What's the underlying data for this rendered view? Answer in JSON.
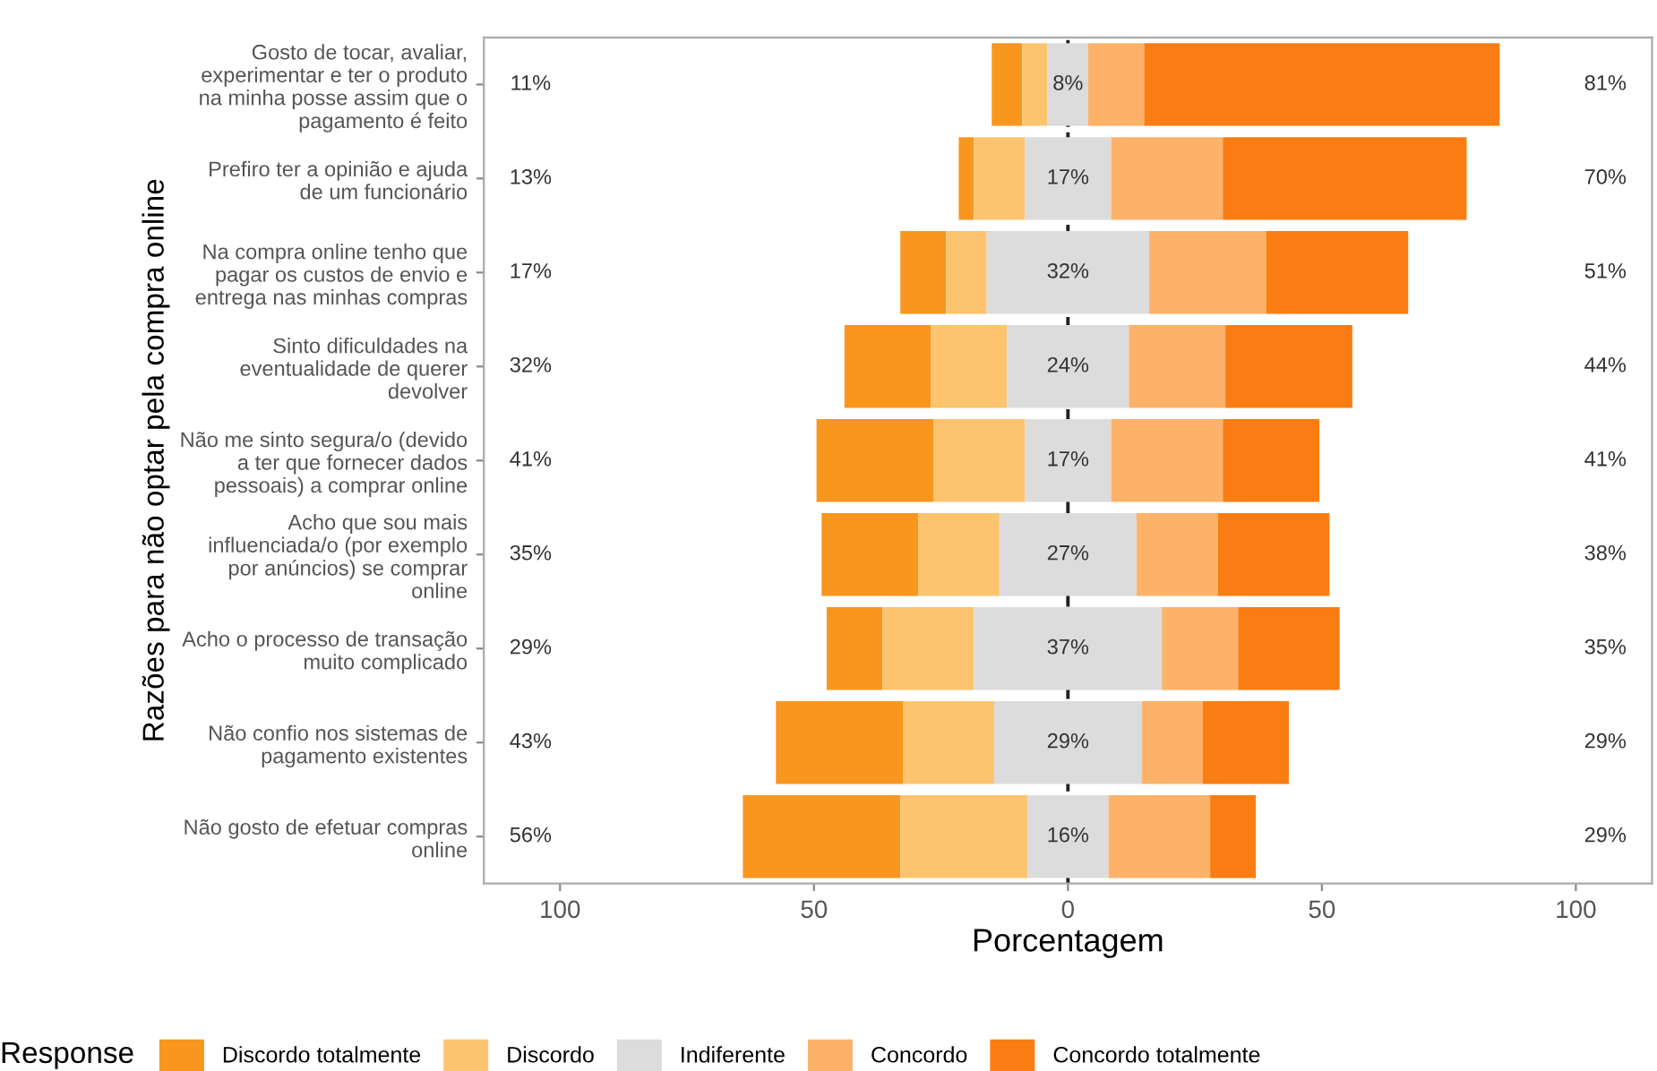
{
  "chart_data": {
    "type": "bar",
    "orientation": "horizontal",
    "xlabel": "Porcentagem",
    "ylabel": "Razões para não optar pela compra online",
    "legend_title": "Response",
    "legend": "bottom",
    "grid": false,
    "categories": [
      "Gosto de tocar, avaliar,\nexperimentar e ter o produto\nna minha posse assim que o\npagamento é feito",
      "Prefiro ter a opinião e ajuda\nde um funcionário",
      "Na compra online tenho que\npagar os custos de envio e\nentrega nas minhas compras",
      "Sinto dificuldades na\neventualidade de querer\ndevolver",
      "Não me sinto segura/o (devido\na ter que fornecer dados\npessoais) a comprar online",
      "Acho que sou mais\ninfluenciada/o (por exemplo\npor anúncios) se comprar\nonline",
      "Acho o processo de transação\nmuito complicado",
      "Não confio nos sistemas de\npagamento existentes",
      "Não gosto de efetuar compras\nonline"
    ],
    "xlim": [
      -115,
      115
    ],
    "xticks": [
      {
        "value": -100,
        "label": "100"
      },
      {
        "value": -50,
        "label": "50"
      },
      0,
      50,
      100
    ],
    "series": [
      {
        "name": "Discordo totalmente",
        "color": "#f8961e",
        "values": [
          6,
          3,
          9,
          17,
          23,
          19,
          11,
          25,
          31
        ],
        "base": [
          -15,
          -21.5,
          -33,
          -44,
          -49.5,
          -48.5,
          -47.5,
          -57.5,
          -64
        ]
      },
      {
        "name": "Discordo",
        "color": "#fcc46e",
        "values": [
          5,
          10,
          8,
          15,
          18,
          16,
          18,
          18,
          25
        ],
        "base": [
          -9,
          -18.5,
          -24,
          -27,
          -26.5,
          -29.5,
          -36.5,
          -32.5,
          -33
        ]
      },
      {
        "name": "Indiferente",
        "color": "#dcdcdc",
        "values": [
          8,
          17,
          32,
          24,
          17,
          27,
          37,
          29,
          16
        ],
        "base": [
          -4,
          -8.5,
          -16,
          -12,
          -8.5,
          -13.5,
          -18.5,
          -14.5,
          -8
        ],
        "value_labels": [
          "8%",
          "17%",
          "32%",
          "24%",
          "17%",
          "27%",
          "37%",
          "29%",
          "16%"
        ]
      },
      {
        "name": "Concordo",
        "color": "#fdb26a",
        "values": [
          11,
          22,
          23,
          19,
          22,
          16,
          15,
          12,
          20
        ],
        "base": [
          4,
          8.5,
          16,
          12,
          8.5,
          13.5,
          18.5,
          14.5,
          8
        ]
      },
      {
        "name": "Concordo totalmente",
        "color": "#f97d12",
        "values": [
          70,
          48,
          28,
          25,
          19,
          22,
          20,
          17,
          9
        ],
        "base": [
          15,
          30.5,
          39,
          31,
          30.5,
          29.5,
          33.5,
          26.5,
          28
        ]
      }
    ],
    "ref_lines": [
      {
        "axis": "x",
        "value": 0,
        "color": "#222222",
        "line_style": "dashed"
      }
    ],
    "annotations": [
      "11%",
      "13%",
      "17%",
      "32%",
      "41%",
      "35%",
      "29%",
      "43%",
      "56%",
      "81%",
      "70%",
      "51%",
      "44%",
      "41%",
      "38%",
      "35%",
      "29%",
      "29%"
    ]
  }
}
